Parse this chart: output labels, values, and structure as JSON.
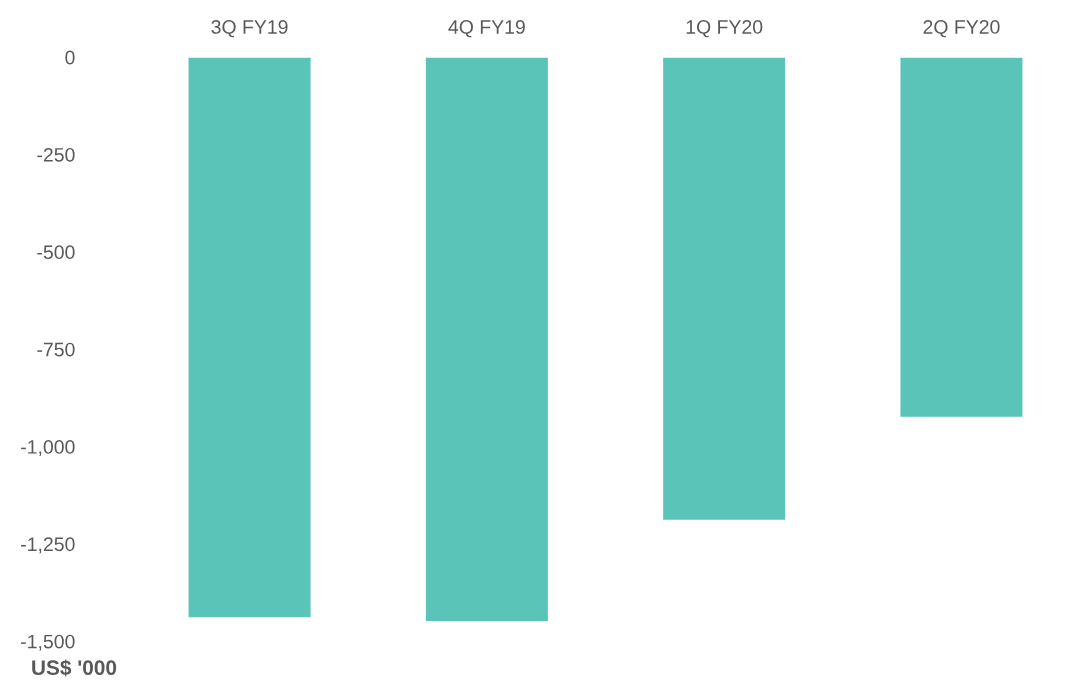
{
  "chart_data": {
    "type": "bar",
    "ylabel": "US$ '000",
    "categories": [
      "3Q FY19",
      "4Q FY19",
      "1Q FY20",
      "2Q FY20"
    ],
    "values": [
      -1440,
      -1450,
      -1190,
      -925
    ],
    "color": "#59c4b7",
    "ylim": [
      -1500,
      0
    ],
    "yticks": [
      0,
      {
        "value": -250,
        "label": "-250"
      },
      {
        "value": -500,
        "label": "-500"
      },
      {
        "value": -750,
        "label": "-750"
      },
      {
        "value": -1000,
        "label": "-1,000"
      },
      {
        "value": -1250,
        "label": "-1,250"
      },
      {
        "value": -1500,
        "label": "-1,500"
      }
    ],
    "grid": false,
    "legend": false
  }
}
